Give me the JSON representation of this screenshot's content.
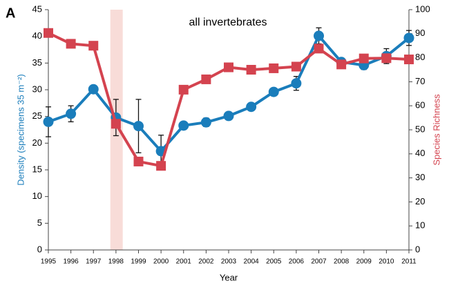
{
  "chart_data": {
    "type": "line",
    "panel_label": "A",
    "annotation": "all invertebrates",
    "x_label": "Year",
    "y_label": "Density (specimens 35 m⁻²)",
    "y2_label": "Species Richness",
    "x": [
      1995,
      1996,
      1997,
      1998,
      1999,
      2000,
      2001,
      2002,
      2003,
      2004,
      2005,
      2006,
      2007,
      2008,
      2009,
      2010,
      2011
    ],
    "xlim": [
      1995,
      2011
    ],
    "xticks": [
      1995,
      1996,
      1997,
      1998,
      1999,
      2000,
      2001,
      2002,
      2003,
      2004,
      2005,
      2006,
      2007,
      2008,
      2009,
      2010,
      2011
    ],
    "ylim": [
      0,
      45
    ],
    "yticks": [
      0,
      5,
      10,
      15,
      20,
      25,
      30,
      35,
      40,
      45
    ],
    "y2lim": [
      0,
      100
    ],
    "y2ticks": [
      0,
      10,
      20,
      30,
      40,
      50,
      60,
      70,
      80,
      90,
      100
    ],
    "shade_xlim": [
      1997.75,
      1998.3
    ],
    "shade_color": "#f8dcd8",
    "series": [
      {
        "name": "Density",
        "color": "#1a7dbb",
        "marker": "circle",
        "values": [
          24,
          25.5,
          30.1,
          24.8,
          23.2,
          18.5,
          23.3,
          23.9,
          25.1,
          26.8,
          29.6,
          31.2,
          40.1,
          35.2,
          34.6,
          36.3,
          39.7
        ],
        "errors": [
          2.8,
          1.5,
          0.6,
          3.4,
          5,
          3,
          0.5,
          0.8,
          0.5,
          0.7,
          0.3,
          1.3,
          1.5,
          0.5,
          0.8,
          1.4,
          1.4
        ]
      },
      {
        "name": "Species Richness",
        "color": "#d4434f",
        "marker": "square",
        "axis": "y2",
        "values": [
          90.3,
          85.8,
          85,
          52.5,
          36.8,
          35,
          66.7,
          71,
          76,
          75,
          75.6,
          76.3,
          83.8,
          77.2,
          79.7,
          79.8,
          79.3
        ],
        "errors": [
          1,
          1.2,
          1,
          null,
          1.5,
          1.5,
          null,
          1.5,
          null,
          null,
          null,
          null,
          null,
          null,
          null,
          null,
          null
        ]
      }
    ]
  }
}
